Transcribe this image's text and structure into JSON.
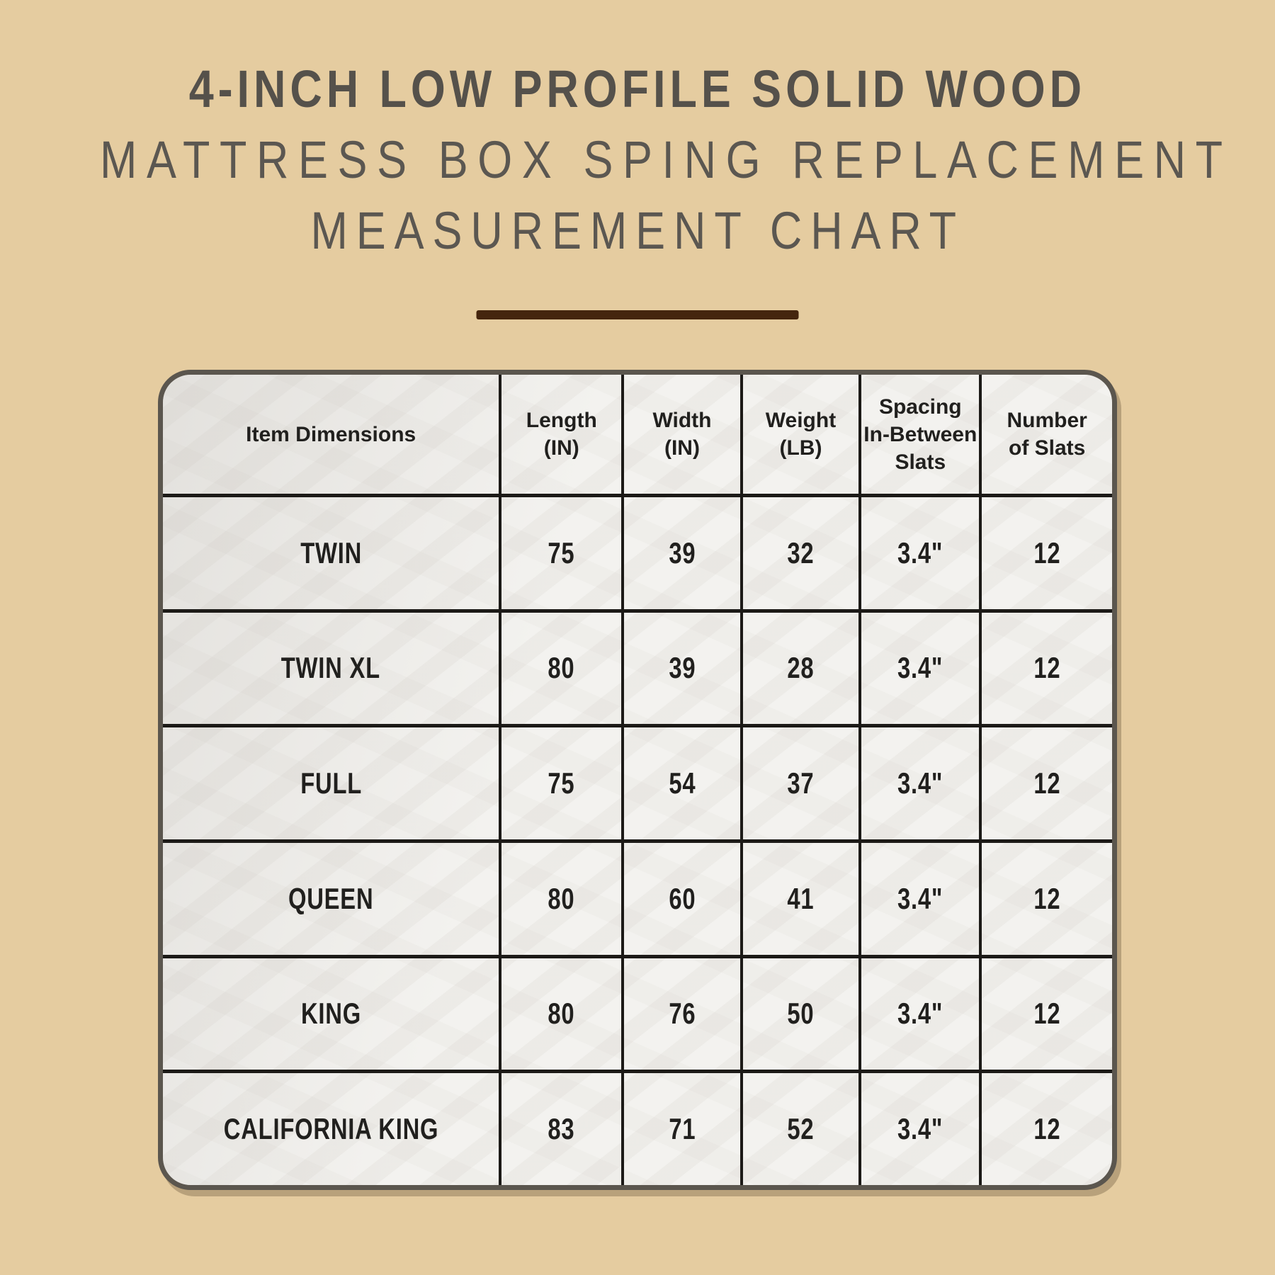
{
  "page": {
    "background_color": "#e5cca0",
    "accent_brown": "#45250e",
    "title_color": "#585450",
    "table_border_color": "#5b564e",
    "grid_line_color": "#1c1a17"
  },
  "title": {
    "line1": "4-INCH LOW PROFILE SOLID WOOD",
    "line2": "MATTRESS BOX SPING REPLACEMENT",
    "line3": "MEASUREMENT CHART"
  },
  "table": {
    "headers": [
      "Item Dimensions",
      "Length\n(IN)",
      "Width\n(IN)",
      "Weight\n(LB)",
      "Spacing\nIn-Between\nSlats",
      "Number\nof Slats"
    ],
    "rows": [
      {
        "label": "TWIN",
        "values": [
          "75",
          "39",
          "32",
          "3.4\"",
          "12"
        ]
      },
      {
        "label": "TWIN XL",
        "values": [
          "80",
          "39",
          "28",
          "3.4\"",
          "12"
        ]
      },
      {
        "label": "FULL",
        "values": [
          "75",
          "54",
          "37",
          "3.4\"",
          "12"
        ]
      },
      {
        "label": "QUEEN",
        "values": [
          "80",
          "60",
          "41",
          "3.4\"",
          "12"
        ]
      },
      {
        "label": "KING",
        "values": [
          "80",
          "76",
          "50",
          "3.4\"",
          "12"
        ]
      },
      {
        "label": "CALIFORNIA KING",
        "values": [
          "83",
          "71",
          "52",
          "3.4\"",
          "12"
        ]
      }
    ]
  },
  "chart_data": {
    "type": "table",
    "title": "4-INCH LOW PROFILE SOLID WOOD MATTRESS BOX SPING REPLACEMENT MEASUREMENT CHART",
    "columns": [
      "Item Dimensions",
      "Length (IN)",
      "Width (IN)",
      "Weight (LB)",
      "Spacing In-Between Slats",
      "Number of Slats"
    ],
    "rows": [
      [
        "TWIN",
        75,
        39,
        32,
        "3.4\"",
        12
      ],
      [
        "TWIN XL",
        80,
        39,
        28,
        "3.4\"",
        12
      ],
      [
        "FULL",
        75,
        54,
        37,
        "3.4\"",
        12
      ],
      [
        "QUEEN",
        80,
        60,
        41,
        "3.4\"",
        12
      ],
      [
        "KING",
        80,
        76,
        50,
        "3.4\"",
        12
      ],
      [
        "CALIFORNIA KING",
        83,
        71,
        52,
        "3.4\"",
        12
      ]
    ]
  }
}
